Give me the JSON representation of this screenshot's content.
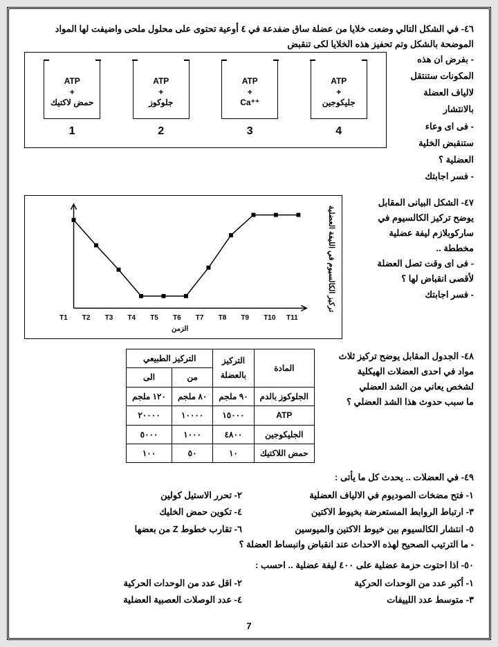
{
  "q46": {
    "intro": "٤٦- في الشكل التالي وضعت خلايا من عضلة ساق ضفدعة في ٤ أوعية تحتوى على محلول ملحى واضيفت لها المواد الموضحة بالشكل وتم تحفيز هذه الخلايا لكى تنقبض",
    "side": [
      "- بفرض ان هذه",
      "المكونات ستنتقل",
      "لالياف العضلة",
      "بالانتشار",
      "- فى اى وعاء",
      "ستنقبض الخلية",
      "العضلية ؟",
      "- فسر اجابتك"
    ],
    "beakers": [
      {
        "num": "1",
        "lines": [
          "ATP",
          "+",
          "حمض لاكتيك"
        ]
      },
      {
        "num": "2",
        "lines": [
          "ATP",
          "+",
          "جلوكوز"
        ]
      },
      {
        "num": "3",
        "lines": [
          "ATP",
          "+",
          "Ca⁺⁺"
        ]
      },
      {
        "num": "4",
        "lines": [
          "ATP",
          "+",
          "جليكوجين"
        ]
      }
    ]
  },
  "q47": {
    "text": [
      "٤٧- الشكل البيانى المقابل",
      "يوضح تركيز الكالسيوم في",
      "ساركوبلازم ليفة عضلية",
      "مخططة ..",
      "- فى اى وقت تصل العضلة",
      "لأقصى انقباض لها ؟",
      "- فسر اجابتك"
    ],
    "ylabel": "تركيز الكالسيوم في الليفة العضلية",
    "xlabel": "الزمن",
    "xticks": [
      "T1",
      "T2",
      "T3",
      "T4",
      "T5",
      "T6",
      "T7",
      "T8",
      "T9",
      "T10",
      "T11"
    ],
    "points": [
      [
        0,
        0.87
      ],
      [
        1,
        0.62
      ],
      [
        2,
        0.38
      ],
      [
        3,
        0.12
      ],
      [
        4,
        0.12
      ],
      [
        5,
        0.12
      ],
      [
        6,
        0.4
      ],
      [
        7,
        0.72
      ],
      [
        8,
        0.92
      ],
      [
        9,
        0.92
      ],
      [
        10,
        0.92
      ]
    ],
    "marker_size": 6,
    "line_color": "#000",
    "marker_color": "#000"
  },
  "q48": {
    "text": [
      "٤٨-  الجدول المقابل يوضح تركيز ثلاث",
      "مواد في احدى العضلات الهيكلية",
      "لشخص يعاني من الشد العضلي",
      "ما سبب حدوث هذا الشد العضلي ؟"
    ],
    "table": {
      "head1": [
        "المادة",
        "التركيز",
        "التركيز الطبيعي"
      ],
      "head2": [
        "",
        "بالعضلة",
        "من",
        "الى"
      ],
      "rows": [
        [
          "الجلوكوز بالدم",
          "٩٠ ملجم",
          "٨٠ ملجم",
          "١٢٠ ملجم"
        ],
        [
          "ATP",
          "١٥٠٠٠",
          "١٠٠٠٠",
          "٢٠٠٠٠"
        ],
        [
          "الجليكوجين",
          "٤٨٠٠",
          "١٠٠٠",
          "٥٠٠٠"
        ],
        [
          "حمض اللاكتيك",
          "١٠",
          "٥٠",
          "١٠٠"
        ]
      ]
    }
  },
  "q49": {
    "intro": "٤٩- في العضلات .. يحدث كل ما يأتى :",
    "opts": [
      "١- فتح مضخات الصوديوم في الالياف العضلية",
      "٢- تحرر الاستيل كولين",
      "٣- ارتباط الروابط المستعرضة بخيوط الاكتين",
      "٤- تكوين حمض الخليك",
      "٥- انتشار الكالسيوم بين خيوط الاكتين والميوسين",
      "٦- تقارب خطوط Z من بعضها"
    ],
    "tail": "- ما الترتيب الصحيح لهذه الاحداث عند انقباض وانبساط العضلة ؟"
  },
  "q50": {
    "intro": "٥٠-  اذا احتوت حزمة عضلية على ٤٠٠ ليفة عضلية .. احسب :",
    "opts": [
      "١- أكبر عدد من الوحدات الحركية",
      "٢- اقل عدد من الوحدات الحركية",
      "٣- متوسط عدد اللييفات",
      "٤- عدد الوصلات العصبية العضلية"
    ]
  },
  "pageNumber": "7"
}
